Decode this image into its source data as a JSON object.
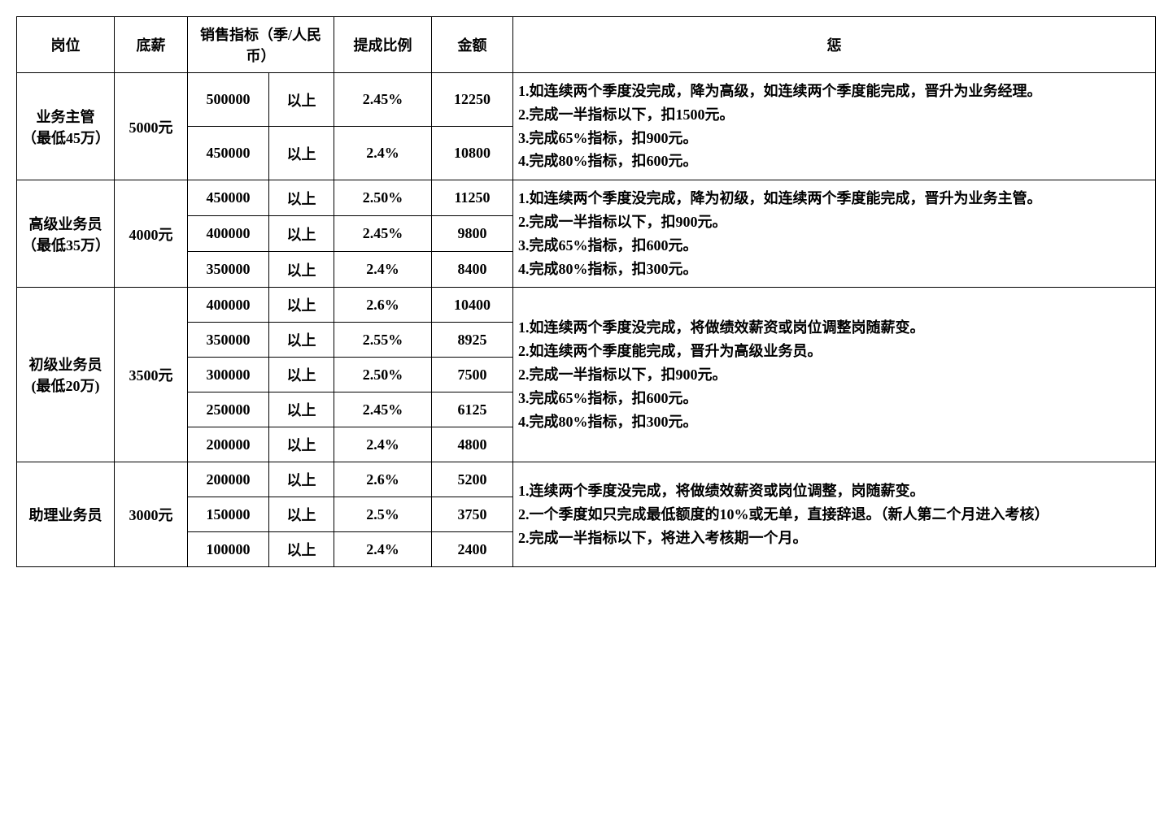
{
  "headers": {
    "position": "岗位",
    "base_salary": "底薪",
    "sales_target": "销售指标（季/人民币）",
    "commission_rate": "提成比例",
    "amount": "金额",
    "penalty": "惩"
  },
  "rows": [
    {
      "position": "业务主管（最低45万）",
      "base": "5000元",
      "tiers": [
        {
          "target": "500000",
          "above": "以上",
          "rate": "2.45%",
          "amount": "12250"
        },
        {
          "target": "450000",
          "above": "以上",
          "rate": "2.4%",
          "amount": "10800"
        }
      ],
      "penalty_lines": [
        "1.如连续两个季度没完成，降为高级，如连续两个季度能完成，晋升为业务经理。",
        "2.完成一半指标以下，扣1500元。",
        "3.完成65%指标，扣900元。",
        "4.完成80%指标，扣600元。"
      ]
    },
    {
      "position": "高级业务员（最低35万）",
      "base": "4000元",
      "tiers": [
        {
          "target": "450000",
          "above": "以上",
          "rate": "2.50%",
          "amount": "11250"
        },
        {
          "target": "400000",
          "above": "以上",
          "rate": "2.45%",
          "amount": "9800"
        },
        {
          "target": "350000",
          "above": "以上",
          "rate": "2.4%",
          "amount": "8400"
        }
      ],
      "penalty_lines": [
        "1.如连续两个季度没完成，降为初级，如连续两个季度能完成，晋升为业务主管。",
        "2.完成一半指标以下，扣900元。",
        "3.完成65%指标，扣600元。",
        "4.完成80%指标，扣300元。"
      ]
    },
    {
      "position": "初级业务员(最低20万)",
      "base": "3500元",
      "tiers": [
        {
          "target": "400000",
          "above": "以上",
          "rate": "2.6%",
          "amount": "10400"
        },
        {
          "target": "350000",
          "above": "以上",
          "rate": "2.55%",
          "amount": "8925"
        },
        {
          "target": "300000",
          "above": "以上",
          "rate": "2.50%",
          "amount": "7500"
        },
        {
          "target": "250000",
          "above": "以上",
          "rate": "2.45%",
          "amount": "6125"
        },
        {
          "target": "200000",
          "above": "以上",
          "rate": "2.4%",
          "amount": "4800"
        }
      ],
      "penalty_lines": [
        "1.如连续两个季度没完成，将做绩效薪资或岗位调整岗随薪变。",
        "2.如连续两个季度能完成，晋升为高级业务员。",
        "2.完成一半指标以下，扣900元。",
        "3.完成65%指标，扣600元。",
        "4.完成80%指标，扣300元。"
      ]
    },
    {
      "position": "助理业务员",
      "base": "3000元",
      "tiers": [
        {
          "target": "200000",
          "above": "以上",
          "rate": "2.6%",
          "amount": "5200"
        },
        {
          "target": "150000",
          "above": "以上",
          "rate": "2.5%",
          "amount": "3750"
        },
        {
          "target": "100000",
          "above": "以上",
          "rate": "2.4%",
          "amount": "2400"
        }
      ],
      "penalty_lines": [
        "1.连续两个季度没完成，将做绩效薪资或岗位调整，岗随薪变。",
        "2.一个季度如只完成最低额度的10%或无单，直接辞退。（新人第二个月进入考核）",
        "2.完成一半指标以下，将进入考核期一个月。"
      ]
    }
  ]
}
